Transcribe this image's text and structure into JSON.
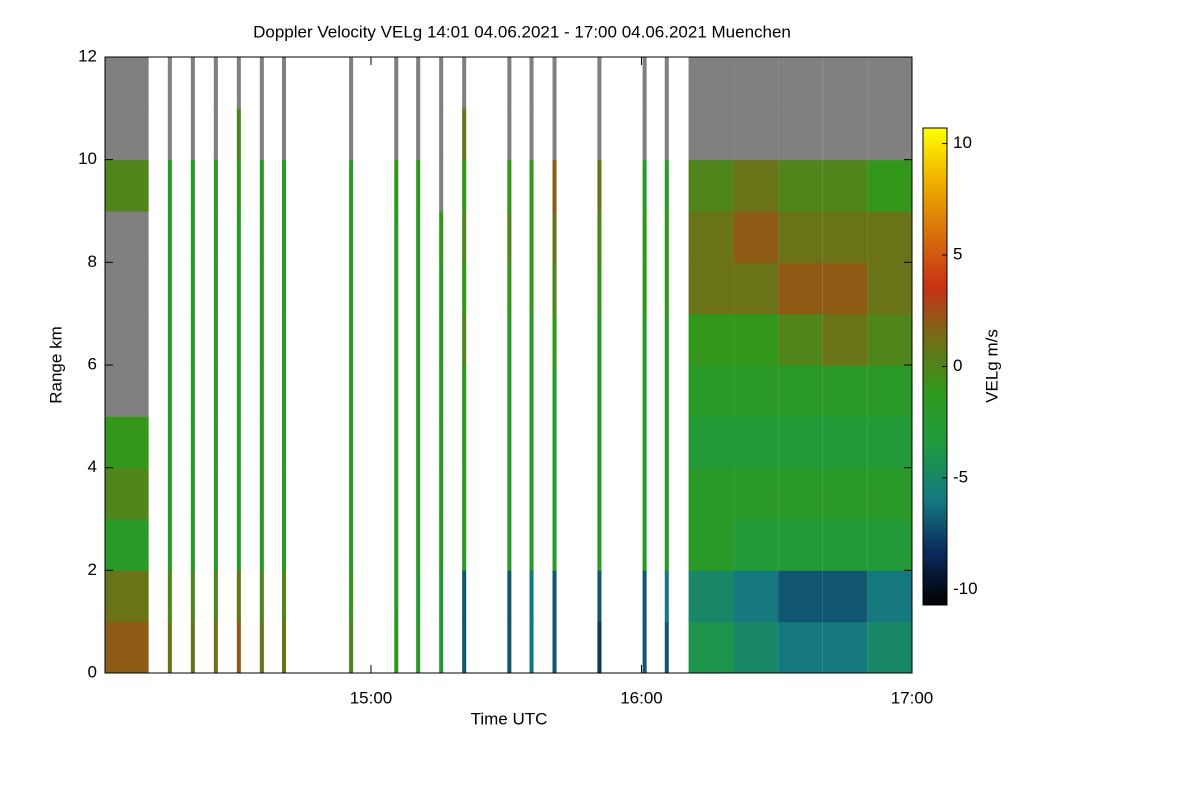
{
  "chart_data": {
    "type": "heatmap",
    "title": "Doppler Velocity VELg   14:01 04.06.2021 - 17:00 04.06.2021 Muenchen",
    "x_label": "Time UTC",
    "y_label": "Range km",
    "colorbar_label": "VELg m/s",
    "xlim": [
      14.0167,
      17.0
    ],
    "xticks": [
      {
        "value": 15,
        "label": "15:00"
      },
      {
        "value": 16,
        "label": "16:00"
      },
      {
        "value": 17,
        "label": "17:00"
      }
    ],
    "ylim": [
      0,
      12
    ],
    "yticks": [
      0,
      2,
      4,
      6,
      8,
      10,
      12
    ],
    "range_bins": [
      0,
      1,
      2,
      3,
      4,
      5,
      6,
      7,
      8,
      9,
      10,
      11,
      12
    ],
    "clim": [
      -10.7,
      10.7
    ],
    "cticks": [
      -10,
      -5,
      0,
      5,
      10
    ],
    "colors": [
      "#000000",
      "#0b2a5c",
      "#157a80",
      "#1f9a40",
      "#2e9a1c",
      "#707018",
      "#c83214",
      "#d8700c",
      "#f0b000",
      "#ffff00"
    ],
    "null_color": "#808080",
    "scans": [
      {
        "start": 14.017,
        "end": 14.178,
        "values": [
          2,
          1,
          -2,
          0,
          -1,
          null,
          null,
          null,
          null,
          0,
          null,
          null
        ]
      },
      {
        "start": 14.249,
        "end": 14.264,
        "values": [
          1,
          0,
          -2,
          -2,
          -2,
          -2,
          -2,
          -2,
          -2,
          -2,
          null,
          null
        ]
      },
      {
        "start": 14.334,
        "end": 14.349,
        "values": [
          1,
          0,
          -2,
          -2,
          -2,
          -2,
          -2,
          -2,
          -2,
          -2,
          null,
          null
        ]
      },
      {
        "start": 14.419,
        "end": 14.434,
        "values": [
          1,
          0,
          -2,
          -2,
          -2,
          -2,
          -2,
          -2,
          -2,
          -2,
          null,
          null
        ]
      },
      {
        "start": 14.504,
        "end": 14.519,
        "values": [
          2,
          1,
          -2,
          -2,
          -2,
          -2,
          -2,
          -2,
          -2,
          -1,
          0,
          null
        ]
      },
      {
        "start": 14.589,
        "end": 14.604,
        "values": [
          1,
          0,
          -2,
          -2,
          -2,
          -2,
          -2,
          -2,
          -2,
          -2,
          null,
          null
        ]
      },
      {
        "start": 14.671,
        "end": 14.686,
        "values": [
          1,
          0,
          -2,
          -2,
          -2,
          -2,
          -2,
          -2,
          -2,
          -2,
          null,
          null
        ]
      },
      {
        "start": 14.919,
        "end": 14.934,
        "values": [
          0,
          -1,
          -2,
          -2,
          -2,
          -2,
          -2,
          -2,
          -2,
          -2,
          null,
          null
        ]
      },
      {
        "start": 15.086,
        "end": 15.101,
        "values": [
          -1,
          -2,
          -2,
          -2,
          -2,
          -2,
          -2,
          -2,
          -2,
          -1,
          null,
          null
        ]
      },
      {
        "start": 15.167,
        "end": 15.182,
        "values": [
          -2,
          -3,
          -2,
          -2,
          -2,
          -2,
          -2,
          -2,
          -2,
          -1,
          null,
          null
        ]
      },
      {
        "start": 15.252,
        "end": 15.267,
        "values": [
          -3,
          -3,
          -2,
          -2,
          -2,
          -2,
          -2,
          -2,
          -1,
          null,
          null,
          null
        ]
      },
      {
        "start": 15.337,
        "end": 15.352,
        "values": [
          -7,
          -7,
          -2,
          -2,
          -2,
          -2,
          0,
          -1,
          0,
          -1,
          1,
          null
        ]
      },
      {
        "start": 15.504,
        "end": 15.519,
        "values": [
          -7,
          -7,
          -2,
          -2,
          -2,
          -2,
          -2,
          -1,
          0,
          -1,
          null,
          null
        ]
      },
      {
        "start": 15.586,
        "end": 15.601,
        "values": [
          -6,
          -6,
          -2,
          -2,
          -2,
          -2,
          -2,
          -1,
          -1,
          -1,
          null,
          null
        ]
      },
      {
        "start": 15.671,
        "end": 15.686,
        "values": [
          -7,
          -7,
          -2,
          -2,
          -2,
          -2,
          -1,
          0,
          1,
          2,
          null,
          null
        ]
      },
      {
        "start": 15.837,
        "end": 15.852,
        "values": [
          -8,
          -7,
          -2,
          -2,
          -2,
          -2,
          -2,
          -1,
          0,
          1,
          null,
          null
        ]
      },
      {
        "start": 16.004,
        "end": 16.019,
        "values": [
          -7,
          -7,
          -2,
          -2,
          -2,
          -2,
          -2,
          -1,
          -1,
          -2,
          null,
          null
        ]
      },
      {
        "start": 16.086,
        "end": 16.101,
        "values": [
          -7,
          -6,
          -2,
          -2,
          -2,
          -2,
          -2,
          -1,
          -1,
          -2,
          null,
          null
        ]
      },
      {
        "start": 16.174,
        "end": 16.34,
        "values": [
          -4,
          -5,
          -2,
          -2,
          -3,
          -2,
          -1,
          1,
          1,
          0,
          null,
          null
        ]
      },
      {
        "start": 16.34,
        "end": 16.505,
        "values": [
          -5,
          -6,
          -3,
          -2,
          -3,
          -2,
          -1,
          1,
          2,
          1,
          null,
          null
        ]
      },
      {
        "start": 16.505,
        "end": 16.67,
        "values": [
          -6,
          -7,
          -3,
          -2,
          -3,
          -2,
          0,
          2,
          1,
          0,
          null,
          null
        ]
      },
      {
        "start": 16.67,
        "end": 16.835,
        "values": [
          -6,
          -7,
          -3,
          -2,
          -3,
          -2,
          1,
          2,
          1,
          0,
          null,
          null
        ]
      },
      {
        "start": 16.835,
        "end": 17.0,
        "values": [
          -5,
          -6,
          -3,
          -2,
          -3,
          -2,
          0,
          1,
          1,
          -1,
          null,
          null
        ]
      }
    ]
  }
}
